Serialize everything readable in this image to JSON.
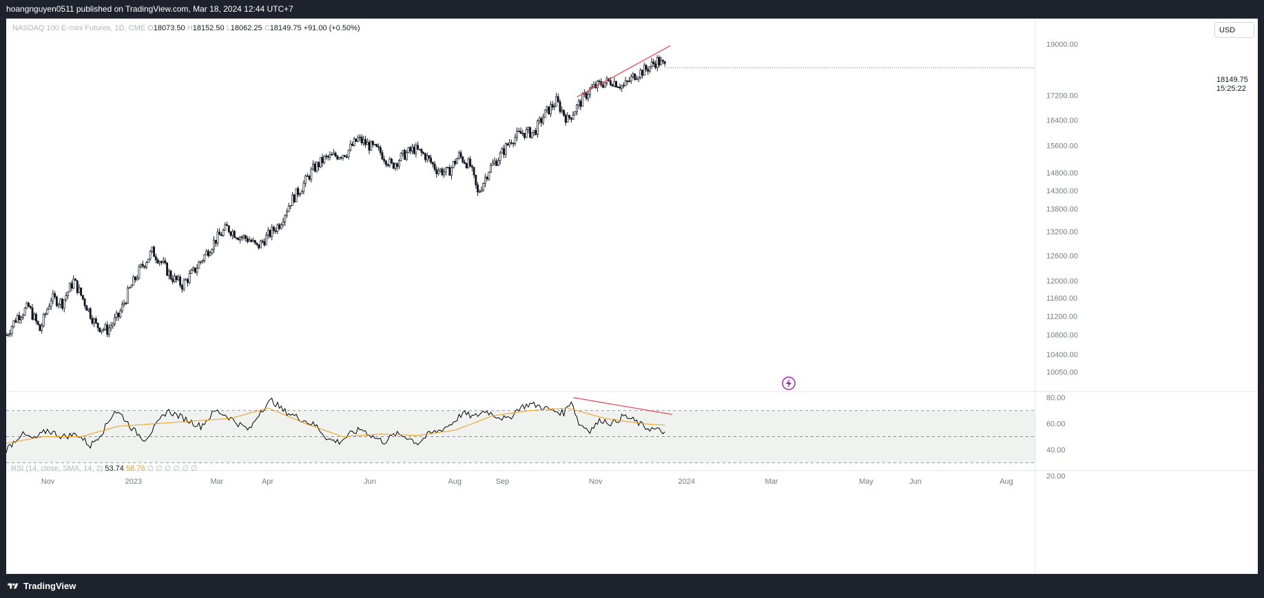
{
  "header": {
    "published": "hoangnguyen0511 published on TradingView.com, Mar 18, 2024 12:44 UTC+7"
  },
  "footer": {
    "brand": "TradingView"
  },
  "legend": {
    "symbol": "NASDAQ 100 E-mini Futures, 1D, CME",
    "o_label": "O",
    "o_value": "18073.50",
    "h_label": "H",
    "h_value": "18152.50",
    "l_label": "L",
    "l_value": "18062.25",
    "c_label": "C",
    "c_value": "18149.75",
    "change": "+91.00 (+0.50%)"
  },
  "rsi_legend": {
    "title": "RSI (14, close, SMA, 14, 2)",
    "rsi_value": "53.74",
    "ma_value": "58.78",
    "na_values": "∅ ∅ ∅ ∅ ∅ ∅"
  },
  "price_axis": {
    "currency": "USD",
    "last_price": "18149.75",
    "countdown": "15:25:22"
  },
  "colors": {
    "rsi_line": "#000000",
    "rsi_ma": "#f39c12",
    "trendline": "#f23645",
    "last_price_bg": "#131722"
  },
  "chart_data": [
    {
      "type": "candlestick",
      "title": "NASDAQ 100 E-mini Futures, 1D, CME",
      "scale": "log",
      "y_ticks": [
        19000,
        17200,
        16400,
        15600,
        14800,
        14300,
        13800,
        13200,
        12600,
        12000,
        11600,
        11200,
        10800,
        10400,
        10050
      ],
      "x_ticks": [
        "Nov",
        "2023",
        "Mar",
        "Apr",
        "Jun",
        "Aug",
        "Sep",
        "Nov",
        "2024",
        "Mar",
        "May",
        "Jun",
        "Aug"
      ],
      "ylim": [
        9700,
        19600
      ],
      "grid": false,
      "close_path": [
        [
          0,
          10800
        ],
        [
          6,
          11200
        ],
        [
          12,
          11400
        ],
        [
          18,
          10900
        ],
        [
          24,
          11600
        ],
        [
          30,
          11500
        ],
        [
          36,
          12000
        ],
        [
          42,
          11500
        ],
        [
          48,
          11000
        ],
        [
          54,
          10900
        ],
        [
          60,
          11200
        ],
        [
          66,
          11800
        ],
        [
          72,
          12300
        ],
        [
          78,
          12700
        ],
        [
          82,
          12500
        ],
        [
          88,
          12100
        ],
        [
          94,
          11900
        ],
        [
          100,
          12200
        ],
        [
          106,
          12600
        ],
        [
          112,
          13000
        ],
        [
          118,
          13300
        ],
        [
          124,
          13100
        ],
        [
          130,
          13000
        ],
        [
          134,
          12800
        ],
        [
          140,
          13100
        ],
        [
          146,
          13400
        ],
        [
          152,
          14000
        ],
        [
          158,
          14400
        ],
        [
          164,
          14900
        ],
        [
          170,
          15200
        ],
        [
          176,
          15300
        ],
        [
          182,
          15400
        ],
        [
          188,
          15800
        ],
        [
          194,
          15600
        ],
        [
          200,
          15400
        ],
        [
          206,
          15000
        ],
        [
          212,
          15300
        ],
        [
          218,
          15500
        ],
        [
          224,
          15300
        ],
        [
          230,
          14900
        ],
        [
          236,
          14800
        ],
        [
          242,
          15300
        ],
        [
          248,
          15000
        ],
        [
          252,
          14200
        ],
        [
          258,
          14900
        ],
        [
          264,
          15300
        ],
        [
          270,
          15800
        ],
        [
          276,
          16000
        ],
        [
          282,
          16000
        ],
        [
          288,
          16600
        ],
        [
          294,
          17000
        ],
        [
          300,
          16400
        ],
        [
          306,
          16900
        ],
        [
          312,
          17400
        ],
        [
          318,
          17600
        ],
        [
          324,
          17700
        ],
        [
          330,
          17500
        ],
        [
          336,
          17900
        ],
        [
          342,
          18100
        ],
        [
          348,
          18400
        ],
        [
          352,
          18200
        ]
      ],
      "trendline": [
        [
          305,
          17150
        ],
        [
          355,
          18950
        ]
      ],
      "last": {
        "open": 18073.5,
        "high": 18152.5,
        "low": 18062.25,
        "close": 18149.75,
        "change": "+91.00 (+0.50%)"
      }
    },
    {
      "type": "line",
      "title": "RSI (14, close, SMA, 14, 2)",
      "ylim": [
        25,
        83
      ],
      "y_ticks": [
        80,
        60,
        40,
        20
      ],
      "bands": {
        "upper": 70,
        "middle": 50,
        "lower": 30
      },
      "series": [
        {
          "values": [
            [
              0,
              40
            ],
            [
              8,
              52
            ],
            [
              15,
              48
            ],
            [
              22,
              55
            ],
            [
              30,
              50
            ],
            [
              38,
              52
            ],
            [
              45,
              43
            ],
            [
              52,
              55
            ],
            [
              58,
              70
            ],
            [
              62,
              66
            ],
            [
              68,
              55
            ],
            [
              74,
              48
            ],
            [
              80,
              58
            ],
            [
              86,
              70
            ],
            [
              92,
              66
            ],
            [
              98,
              62
            ],
            [
              104,
              58
            ],
            [
              112,
              70
            ],
            [
              118,
              66
            ],
            [
              124,
              60
            ],
            [
              130,
              55
            ],
            [
              136,
              70
            ],
            [
              142,
              78
            ],
            [
              148,
              70
            ],
            [
              154,
              66
            ],
            [
              160,
              62
            ],
            [
              166,
              58
            ],
            [
              172,
              48
            ],
            [
              178,
              46
            ],
            [
              184,
              52
            ],
            [
              190,
              56
            ],
            [
              196,
              50
            ],
            [
              202,
              46
            ],
            [
              208,
              52
            ],
            [
              214,
              50
            ],
            [
              220,
              45
            ],
            [
              226,
              52
            ],
            [
              232,
              55
            ],
            [
              238,
              60
            ],
            [
              244,
              68
            ],
            [
              250,
              65
            ],
            [
              256,
              70
            ],
            [
              262,
              66
            ],
            [
              268,
              63
            ],
            [
              274,
              72
            ],
            [
              280,
              75
            ],
            [
              286,
              73
            ],
            [
              292,
              70
            ],
            [
              298,
              68
            ],
            [
              302,
              78
            ],
            [
              306,
              60
            ],
            [
              312,
              55
            ],
            [
              318,
              63
            ],
            [
              324,
              60
            ],
            [
              330,
              66
            ],
            [
              336,
              62
            ],
            [
              342,
              57
            ],
            [
              348,
              55
            ],
            [
              352,
              53.74
            ]
          ]
        },
        {
          "values": [
            [
              0,
              45
            ],
            [
              20,
              50
            ],
            [
              40,
              50
            ],
            [
              60,
              58
            ],
            [
              80,
              60
            ],
            [
              100,
              62
            ],
            [
              120,
              64
            ],
            [
              140,
              72
            ],
            [
              160,
              60
            ],
            [
              180,
              50
            ],
            [
              200,
              52
            ],
            [
              220,
              51
            ],
            [
              240,
              55
            ],
            [
              260,
              66
            ],
            [
              280,
              70
            ],
            [
              300,
              72
            ],
            [
              320,
              64
            ],
            [
              340,
              60
            ],
            [
              352,
              58.78
            ]
          ]
        }
      ],
      "trendline": [
        [
          303,
          80
        ],
        [
          356,
          67
        ]
      ]
    }
  ]
}
